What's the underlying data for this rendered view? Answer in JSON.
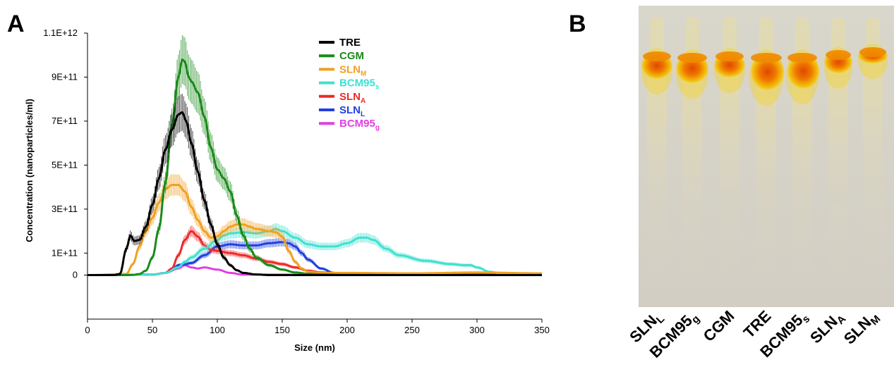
{
  "panels": {
    "left_letter": "A",
    "right_letter": "B"
  },
  "chart_data": [
    {
      "type": "line",
      "xlabel": "Size (nm)",
      "ylabel": "Concentration (nanoparticles/ml)",
      "xlim": [
        0,
        350
      ],
      "ylim": [
        -200000000000.0,
        1100000000000.0
      ],
      "x_ticks": [
        "0",
        "50",
        "100",
        "150",
        "200",
        "250",
        "300",
        "350"
      ],
      "y_ticks": [
        "0",
        "1E+11",
        "3E+11",
        "5E+11",
        "7E+11",
        "9E+11",
        "1.1E+12"
      ],
      "y_tick_values": [
        0,
        100000000000.0,
        300000000000.0,
        500000000000.0,
        700000000000.0,
        900000000000.0,
        1100000000000.0
      ],
      "grid": false,
      "legend_position": "top-right",
      "series": [
        {
          "name": "TRE",
          "color": "#000000",
          "error_bars": true,
          "x": [
            0,
            20,
            25,
            30,
            33,
            36,
            40,
            45,
            50,
            55,
            60,
            65,
            70,
            73,
            76,
            80,
            85,
            90,
            95,
            100,
            105,
            110,
            115,
            120,
            130,
            140,
            150,
            200,
            250,
            300,
            350
          ],
          "y": [
            0,
            0,
            5000000000.0,
            120000000000.0,
            180000000000.0,
            155000000000.0,
            160000000000.0,
            220000000000.0,
            320000000000.0,
            440000000000.0,
            570000000000.0,
            660000000000.0,
            730000000000.0,
            740000000000.0,
            700000000000.0,
            600000000000.0,
            470000000000.0,
            340000000000.0,
            230000000000.0,
            140000000000.0,
            80000000000.0,
            45000000000.0,
            22000000000.0,
            10000000000.0,
            3000000000.0,
            0,
            0,
            0,
            0,
            0,
            0
          ]
        },
        {
          "name": "CGM",
          "color": "#1a8a1a",
          "error_bars": true,
          "x": [
            0,
            30,
            35,
            40,
            45,
            50,
            55,
            60,
            65,
            70,
            73,
            75,
            78,
            80,
            85,
            90,
            95,
            100,
            105,
            110,
            115,
            120,
            125,
            130,
            140,
            150,
            160,
            170,
            180,
            200,
            250,
            300,
            350
          ],
          "y": [
            0,
            0,
            1000000000.0,
            5000000000.0,
            20000000000.0,
            80000000000.0,
            210000000000.0,
            420000000000.0,
            680000000000.0,
            900000000000.0,
            980000000000.0,
            970000000000.0,
            900000000000.0,
            880000000000.0,
            830000000000.0,
            720000000000.0,
            580000000000.0,
            480000000000.0,
            440000000000.0,
            380000000000.0,
            270000000000.0,
            180000000000.0,
            120000000000.0,
            80000000000.0,
            45000000000.0,
            25000000000.0,
            12000000000.0,
            6000000000.0,
            3000000000.0,
            1000000000.0,
            0,
            0,
            0
          ]
        },
        {
          "name": "SLN_M",
          "color": "#f0a020",
          "error_bars": true,
          "x": [
            0,
            30,
            35,
            40,
            45,
            50,
            55,
            60,
            65,
            70,
            75,
            80,
            85,
            90,
            95,
            100,
            105,
            110,
            115,
            120,
            125,
            130,
            140,
            145,
            150,
            155,
            160,
            165,
            170,
            180,
            200,
            250,
            300,
            350
          ],
          "y": [
            0,
            5000000000.0,
            50000000000.0,
            130000000000.0,
            200000000000.0,
            260000000000.0,
            330000000000.0,
            390000000000.0,
            410000000000.0,
            410000000000.0,
            380000000000.0,
            310000000000.0,
            250000000000.0,
            200000000000.0,
            170000000000.0,
            175000000000.0,
            200000000000.0,
            220000000000.0,
            230000000000.0,
            230000000000.0,
            220000000000.0,
            210000000000.0,
            200000000000.0,
            195000000000.0,
            175000000000.0,
            110000000000.0,
            60000000000.0,
            30000000000.0,
            15000000000.0,
            10000000000.0,
            10000000000.0,
            8000000000.0,
            12000000000.0,
            8000000000.0
          ]
        },
        {
          "name": "BCM95_s",
          "color": "#40e0d0",
          "error_bars": true,
          "x": [
            0,
            50,
            60,
            70,
            75,
            80,
            90,
            100,
            105,
            110,
            120,
            130,
            140,
            145,
            150,
            160,
            170,
            180,
            190,
            200,
            210,
            215,
            220,
            230,
            240,
            260,
            280,
            290,
            295,
            300,
            310,
            320,
            350
          ],
          "y": [
            0,
            2000000000.0,
            10000000000.0,
            35000000000.0,
            60000000000.0,
            80000000000.0,
            120000000000.0,
            160000000000.0,
            180000000000.0,
            190000000000.0,
            195000000000.0,
            190000000000.0,
            200000000000.0,
            210000000000.0,
            200000000000.0,
            170000000000.0,
            140000000000.0,
            130000000000.0,
            130000000000.0,
            145000000000.0,
            170000000000.0,
            170000000000.0,
            160000000000.0,
            120000000000.0,
            90000000000.0,
            65000000000.0,
            50000000000.0,
            45000000000.0,
            45000000000.0,
            35000000000.0,
            15000000000.0,
            5000000000.0,
            2000000000.0
          ]
        },
        {
          "name": "SLN_A",
          "color": "#ee2a2a",
          "error_bars": true,
          "x": [
            0,
            50,
            60,
            65,
            70,
            75,
            80,
            85,
            90,
            95,
            100,
            110,
            120,
            130,
            140,
            150,
            160,
            170,
            180,
            200,
            250,
            300,
            350
          ],
          "y": [
            0,
            2000000000.0,
            10000000000.0,
            30000000000.0,
            90000000000.0,
            160000000000.0,
            200000000000.0,
            175000000000.0,
            135000000000.0,
            115000000000.0,
            110000000000.0,
            100000000000.0,
            90000000000.0,
            75000000000.0,
            60000000000.0,
            50000000000.0,
            35000000000.0,
            20000000000.0,
            12000000000.0,
            8000000000.0,
            5000000000.0,
            5000000000.0,
            5000000000.0
          ]
        },
        {
          "name": "SLN_L",
          "color": "#2040e0",
          "error_bars": true,
          "x": [
            0,
            50,
            60,
            65,
            70,
            75,
            80,
            90,
            100,
            110,
            120,
            130,
            140,
            150,
            155,
            160,
            165,
            170,
            180,
            190,
            200,
            250,
            300,
            350
          ],
          "y": [
            0,
            2000000000.0,
            10000000000.0,
            25000000000.0,
            45000000000.0,
            50000000000.0,
            55000000000.0,
            90000000000.0,
            130000000000.0,
            140000000000.0,
            135000000000.0,
            135000000000.0,
            145000000000.0,
            150000000000.0,
            145000000000.0,
            130000000000.0,
            100000000000.0,
            70000000000.0,
            30000000000.0,
            10000000000.0,
            5000000000.0,
            2000000000.0,
            2000000000.0,
            2000000000.0
          ]
        },
        {
          "name": "BCM95_g",
          "color": "#e040e0",
          "error_bars": false,
          "x": [
            0,
            50,
            60,
            70,
            75,
            80,
            85,
            90,
            100,
            110,
            120,
            350
          ],
          "y": [
            0,
            2000000000.0,
            10000000000.0,
            30000000000.0,
            45000000000.0,
            35000000000.0,
            30000000000.0,
            35000000000.0,
            25000000000.0,
            10000000000.0,
            2000000000.0,
            0
          ]
        }
      ]
    }
  ],
  "legend": [
    {
      "base": "TRE",
      "sub": "",
      "color": "#000000"
    },
    {
      "base": "CGM",
      "sub": "",
      "color": "#1a8a1a"
    },
    {
      "base": "SLN",
      "sub": "M",
      "color": "#f0a020"
    },
    {
      "base": "BCM95",
      "sub": "s",
      "color": "#40e0d0"
    },
    {
      "base": "SLN",
      "sub": "A",
      "color": "#ee2a2a"
    },
    {
      "base": "SLN",
      "sub": "L",
      "color": "#2040e0"
    },
    {
      "base": "BCM95",
      "sub": "g",
      "color": "#e040e0"
    }
  ],
  "gel": {
    "background_color": "#d6d3c9",
    "band_colors": {
      "core": "#e65c00",
      "outer": "#f2c200",
      "trail": "#e8dc9c"
    },
    "lanes": [
      {
        "base": "SLN",
        "sub": "L",
        "sub_position": "sub"
      },
      {
        "base": "BCM95",
        "sub": "g",
        "sub_position": "sub"
      },
      {
        "base": "CGM",
        "sub": "",
        "sub_position": "sub"
      },
      {
        "base": "TRE",
        "sub": "",
        "sub_position": "sub"
      },
      {
        "base": "BCM95",
        "sub": "s",
        "sub_position": "sub"
      },
      {
        "base": "SLN",
        "sub": "A",
        "sub_position": "sub"
      },
      {
        "base": "SLN",
        "sub": "M",
        "sub_position": "sub"
      }
    ]
  }
}
